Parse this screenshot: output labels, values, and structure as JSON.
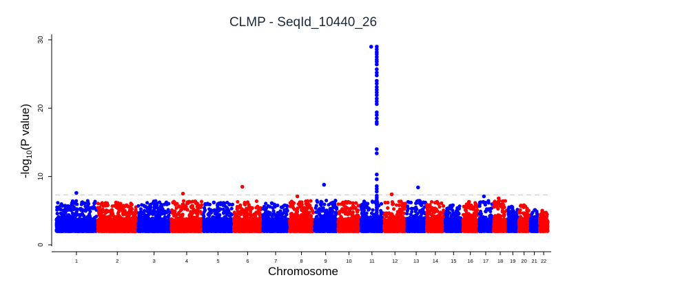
{
  "chart_data": {
    "type": "scatter",
    "title": "CLMP - SeqId_10440_26",
    "xlabel": "Chromosome",
    "ylabel": "-log10(P value)",
    "ylim": [
      0,
      31
    ],
    "yticks": [
      0,
      10,
      20,
      30
    ],
    "grid": false,
    "significance_line": 7.3,
    "series_colors": [
      "#0000ff",
      "#ff0000"
    ],
    "chromosomes": [
      {
        "label": "1",
        "peak": 7.6,
        "color": "#0000ff"
      },
      {
        "label": "2",
        "peak": 6.2,
        "color": "#ff0000"
      },
      {
        "label": "3",
        "peak": 6.4,
        "color": "#0000ff"
      },
      {
        "label": "4",
        "peak": 7.5,
        "color": "#ff0000"
      },
      {
        "label": "5",
        "peak": 6.2,
        "color": "#0000ff"
      },
      {
        "label": "6",
        "peak": 8.5,
        "color": "#ff0000"
      },
      {
        "label": "7",
        "peak": 6.1,
        "color": "#0000ff"
      },
      {
        "label": "8",
        "peak": 7.1,
        "color": "#ff0000"
      },
      {
        "label": "9",
        "peak": 8.8,
        "color": "#0000ff"
      },
      {
        "label": "10",
        "peak": 6.3,
        "color": "#ff0000"
      },
      {
        "label": "11",
        "peak": 29.0,
        "color": "#0000ff"
      },
      {
        "label": "12",
        "peak": 7.4,
        "color": "#ff0000"
      },
      {
        "label": "13",
        "peak": 8.4,
        "color": "#0000ff"
      },
      {
        "label": "14",
        "peak": 6.3,
        "color": "#ff0000"
      },
      {
        "label": "15",
        "peak": 5.8,
        "color": "#0000ff"
      },
      {
        "label": "16",
        "peak": 6.3,
        "color": "#ff0000"
      },
      {
        "label": "17",
        "peak": 7.1,
        "color": "#0000ff"
      },
      {
        "label": "18",
        "peak": 6.8,
        "color": "#ff0000"
      },
      {
        "label": "19",
        "peak": 5.6,
        "color": "#0000ff"
      },
      {
        "label": "20",
        "peak": 5.8,
        "color": "#ff0000"
      },
      {
        "label": "21",
        "peak": 5.1,
        "color": "#0000ff"
      },
      {
        "label": "22",
        "peak": 5.0,
        "color": "#ff0000"
      }
    ],
    "chr11_hit_values": [
      29.0,
      28.6,
      28.2,
      27.9,
      27.5,
      27.1,
      26.8,
      26.4,
      25.7,
      25.2,
      24.8,
      24.0,
      23.6,
      23.1,
      22.7,
      22.3,
      21.9,
      21.4,
      21.0,
      20.6,
      19.4,
      19.0,
      18.5,
      18.0,
      17.7,
      14.0,
      13.4,
      10.3,
      9.6,
      8.6,
      8.2,
      7.8
    ]
  }
}
